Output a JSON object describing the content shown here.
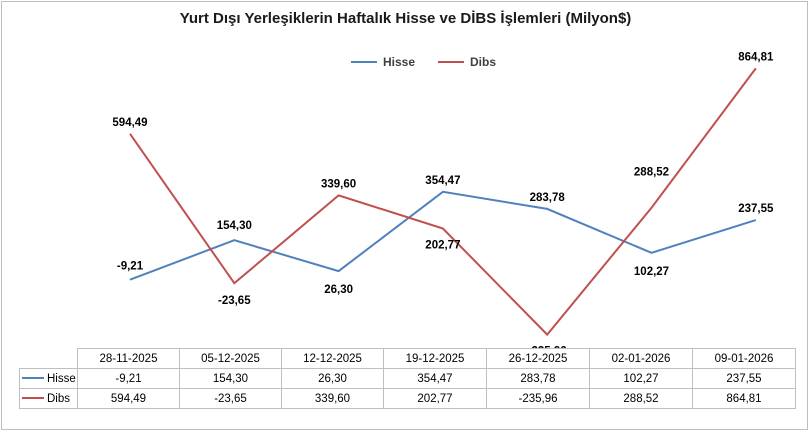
{
  "chart_data": {
    "type": "line",
    "title": "Yurt Dışı Yerleşiklerin Haftalık Hisse ve DİBS İşlemleri (Milyon$)",
    "categories": [
      "28-11-2025",
      "05-12-2025",
      "12-12-2025",
      "19-12-2025",
      "26-12-2025",
      "02-01-2026",
      "09-01-2026"
    ],
    "series": [
      {
        "name": "Hisse",
        "color": "#4f81bd",
        "values": [
          -9.21,
          154.3,
          26.3,
          354.47,
          283.78,
          102.27,
          237.55
        ],
        "labels": [
          "-9,21",
          "154,30",
          "26,30",
          "354,47",
          "283,78",
          "102,27",
          "237,55"
        ]
      },
      {
        "name": "Dibs",
        "color": "#c0504d",
        "values": [
          594.49,
          -23.65,
          339.6,
          202.77,
          -235.96,
          288.52,
          864.81
        ],
        "labels": [
          "594,49",
          "-23,65",
          "339,60",
          "202,77",
          "-235,96",
          "288,52",
          "864,81"
        ]
      }
    ],
    "legend_position": "top",
    "grid": false,
    "data_table": true
  }
}
